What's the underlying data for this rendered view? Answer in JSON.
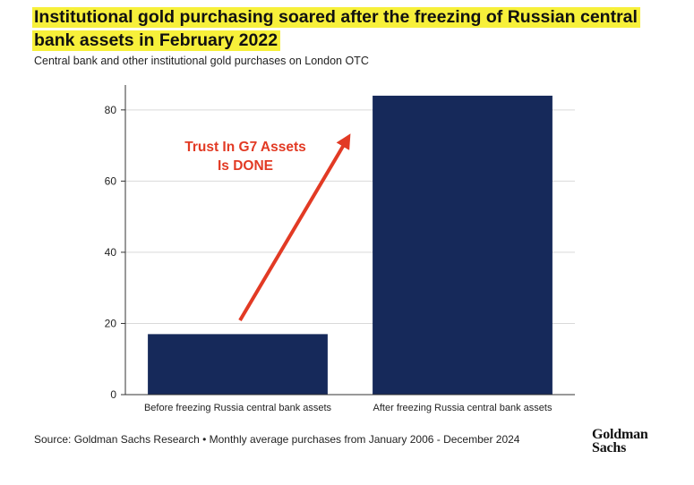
{
  "title": "Institutional gold purchasing soared after the freezing of Russian central bank assets in February 2022",
  "subtitle": "Central bank and other institutional gold purchases on London OTC",
  "source": "Source: Goldman Sachs Research • Monthly average purchases from January 2006 - December 2024",
  "logo": {
    "line1": "Goldman",
    "line2": "Sachs"
  },
  "colors": {
    "bar": "#16295a",
    "arrow": "#e23a24",
    "highlight": "#f7f03a",
    "grid": "#d9d9d9"
  },
  "chart_data": {
    "type": "bar",
    "categories": [
      "Before freezing Russia central bank assets",
      "After freezing Russia central bank assets"
    ],
    "values": [
      17,
      84
    ],
    "ylim": [
      0,
      87
    ],
    "yticks": [
      0,
      20,
      40,
      60,
      80
    ],
    "grid": true,
    "annotation": {
      "line1": "Trust In G7 Assets",
      "line2": "Is DONE"
    }
  }
}
